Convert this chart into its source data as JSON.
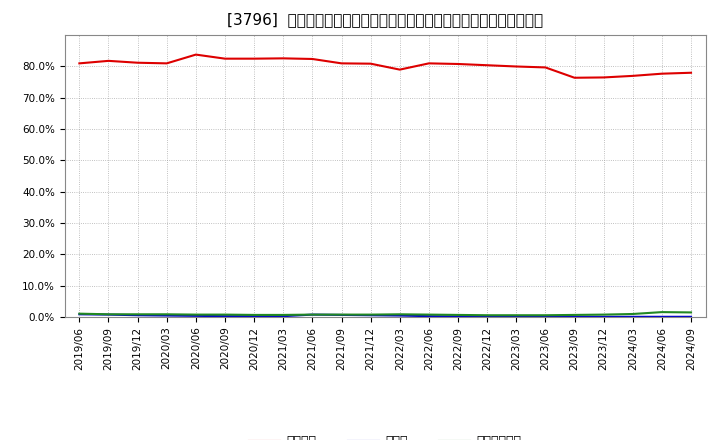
{
  "title": "[3796]  自己資本、のれん、繰延税金資産の総資産に対する比率の推移",
  "x_labels": [
    "2019/06",
    "2019/09",
    "2019/12",
    "2020/03",
    "2020/06",
    "2020/09",
    "2020/12",
    "2021/03",
    "2021/06",
    "2021/09",
    "2021/12",
    "2022/03",
    "2022/06",
    "2022/09",
    "2022/12",
    "2023/03",
    "2023/06",
    "2023/09",
    "2023/12",
    "2024/03",
    "2024/06",
    "2024/09"
  ],
  "jikoshihon": [
    81.0,
    81.8,
    81.2,
    81.0,
    83.8,
    82.5,
    82.5,
    82.6,
    82.4,
    81.0,
    80.9,
    79.0,
    81.0,
    80.8,
    80.4,
    80.0,
    79.7,
    76.4,
    76.5,
    77.0,
    77.7,
    78.0
  ],
  "noren": [
    0.8,
    0.7,
    0.5,
    0.4,
    0.3,
    0.2,
    0.2,
    0.2,
    0.7,
    0.6,
    0.5,
    0.4,
    0.2,
    0.1,
    0.1,
    0.0,
    0.0,
    0.0,
    0.0,
    0.0,
    0.0,
    0.0
  ],
  "kurinobezeikin": [
    1.0,
    0.8,
    0.8,
    0.8,
    0.7,
    0.7,
    0.6,
    0.6,
    0.7,
    0.7,
    0.7,
    0.8,
    0.7,
    0.6,
    0.5,
    0.5,
    0.5,
    0.6,
    0.7,
    0.9,
    1.5,
    1.4
  ],
  "line_color_jikoshihon": "#dd0000",
  "line_color_noren": "#0000cc",
  "line_color_kurinobezeikin": "#228822",
  "legend_label_jikoshihon": "自己資本",
  "legend_label_noren": "のれん",
  "legend_label_kurinobezeikin": "繰延税金資産",
  "ylim_min": 0.0,
  "ylim_max": 90.0,
  "yticks": [
    0.0,
    10.0,
    20.0,
    30.0,
    40.0,
    50.0,
    60.0,
    70.0,
    80.0
  ],
  "background_color": "#ffffff",
  "grid_color": "#999999",
  "spine_color": "#888888",
  "title_fontsize": 11,
  "tick_fontsize": 7.5,
  "legend_fontsize": 9
}
